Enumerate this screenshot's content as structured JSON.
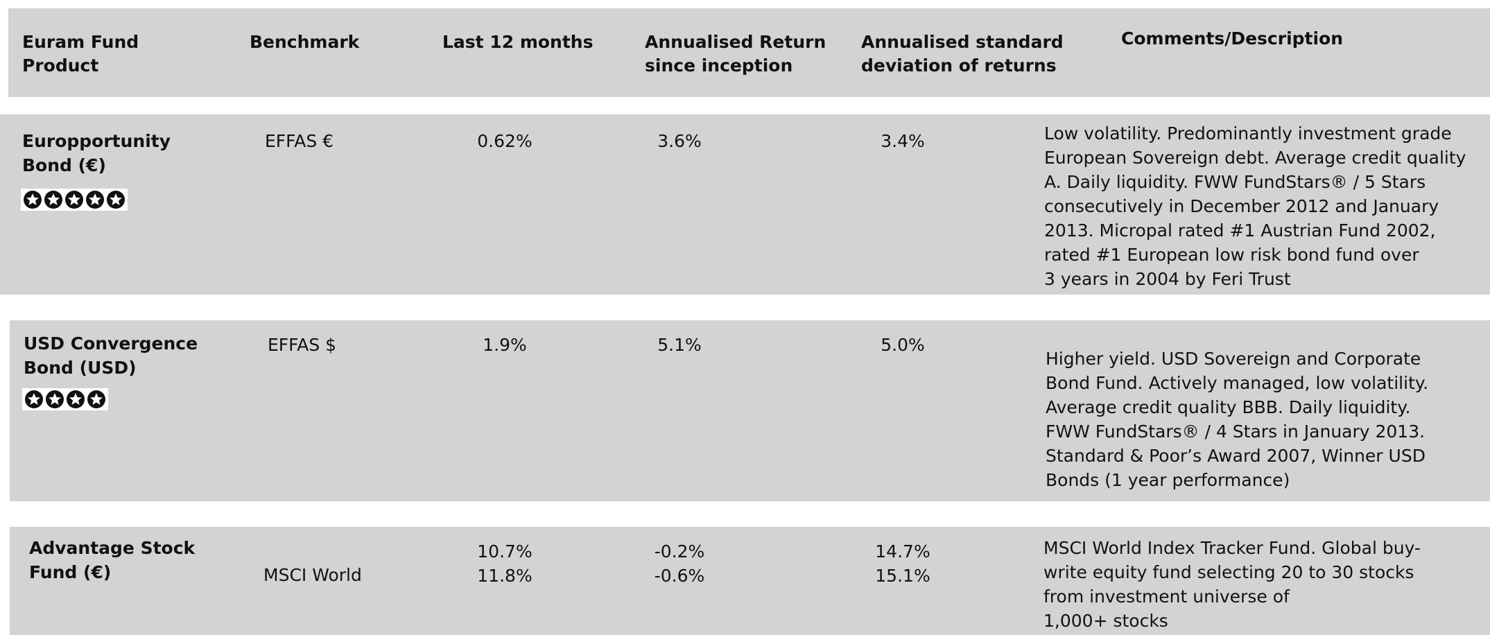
{
  "header": [
    "Euram Fund Product",
    "Benchmark",
    "Last 12 months",
    "Annualised Return since inception",
    "Annualised standard deviation of returns",
    "Comments/Description"
  ],
  "header_lines": [
    [
      "Euram Fund",
      "Product"
    ],
    [
      "Benchmark"
    ],
    [
      "Last 12 months"
    ],
    [
      "Annualised Return",
      "since inception"
    ],
    [
      "Annualised standard",
      "deviation of returns"
    ],
    [
      "Comments/Description"
    ]
  ],
  "rows": [
    {
      "product": [
        "Europportunity",
        "Bond (€)"
      ],
      "rating": 5,
      "benchmark": "EFFAS €",
      "last_12_months": [
        "0.62%"
      ],
      "annualised_return": [
        "3.6%"
      ],
      "std_dev": [
        "3.4%"
      ],
      "comment": [
        "Low volatility. Predominantly investment grade",
        "European Sovereign debt. Average credit quality",
        "A. Daily liquidity. FWW FundStars® / 5 Stars",
        "consecutively in December 2012 and January",
        "2013. Micropal rated #1 Austrian Fund 2002,",
        "rated #1 European low risk bond fund over",
        "3 years in 2004 by Feri Trust"
      ]
    },
    {
      "product": [
        "USD Convergence",
        "Bond (USD)"
      ],
      "rating": 4,
      "benchmark": "EFFAS $",
      "last_12_months": [
        "1.9%"
      ],
      "annualised_return": [
        "5.1%"
      ],
      "std_dev": [
        "5.0%"
      ],
      "comment": [
        "Higher yield. USD Sovereign and Corporate",
        "Bond Fund. Actively managed, low volatility.",
        "Average credit quality BBB. Daily liquidity.",
        "FWW FundStars® / 4 Stars in January 2013.",
        "Standard & Poor’s Award 2007, Winner USD",
        "Bonds (1 year performance)"
      ]
    },
    {
      "product": [
        "Advantage Stock",
        "Fund (€)"
      ],
      "benchmark": "MSCI World",
      "last_12_months": [
        "10.7%",
        "11.8%"
      ],
      "annualised_return": [
        "-0.2%",
        "-0.6%"
      ],
      "std_dev": [
        "14.7%",
        "15.1%"
      ],
      "comment": [
        "MSCI World Index Tracker Fund. Global buy-",
        "write equity fund selecting 20 to 30 stocks",
        "from investment universe of",
        "1,000+ stocks"
      ]
    }
  ]
}
